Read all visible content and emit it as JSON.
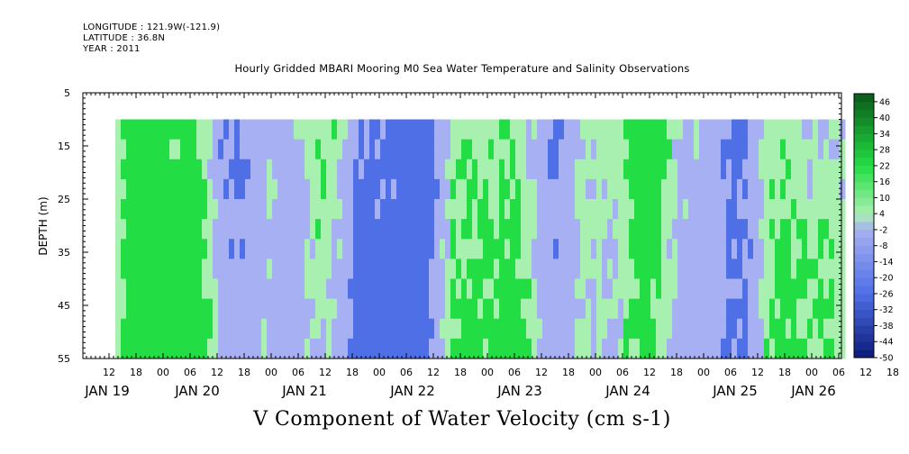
{
  "header": {
    "longitude": "LONGITUDE : 121.9W(-121.9)",
    "latitude": "LATITUDE : 36.8N",
    "year": "YEAR : 2011"
  },
  "chart_data": {
    "type": "heatmap",
    "title": "Hourly Gridded MBARI Mooring M0 Sea Water Temperature and Salinity Observations",
    "xlabel": "V Component of Water Velocity (cm s-1)",
    "ylabel": "DEPTH (m)",
    "y_range": [
      5,
      55
    ],
    "y_reversed": true,
    "y_ticks": [
      5,
      15,
      25,
      35,
      45,
      55
    ],
    "data_depth_range": [
      10,
      55
    ],
    "x_range_hours": [
      "JAN 18 06:00",
      "JAN 26 12:00"
    ],
    "x_hour_ticks": [
      "12",
      "18",
      "00",
      "06",
      "12",
      "18",
      "00",
      "06",
      "12",
      "18",
      "00",
      "06",
      "12",
      "18",
      "00",
      "06",
      "12",
      "18",
      "00",
      "06",
      "12",
      "18",
      "00",
      "06",
      "12",
      "18",
      "00",
      "06",
      "12",
      "18",
      "00",
      "06"
    ],
    "x_day_labels": [
      "JAN 19",
      "JAN 20",
      "JAN 21",
      "JAN 22",
      "JAN 23",
      "JAN 24",
      "JAN 25",
      "JAN 26"
    ],
    "colorbar": {
      "labels": [
        "46",
        "40",
        "34",
        "28",
        "22",
        "16",
        "10",
        "4",
        "-2",
        "-8",
        "-14",
        "-20",
        "-26",
        "-32",
        "-38",
        "-44",
        "-50"
      ],
      "levels": [
        -50,
        -47,
        -44,
        -41,
        -38,
        -35,
        -32,
        -29,
        -26,
        -23,
        -20,
        -17,
        -14,
        -11,
        -8,
        -5,
        -2,
        1,
        4,
        7,
        10,
        13,
        16,
        19,
        22,
        25,
        28,
        31,
        34,
        37,
        40,
        43,
        46,
        49
      ],
      "colors": {
        "deep_negative": "#0a1a78",
        "negative": "#4f6fe6",
        "mild_negative": "#a6b0f2",
        "mild_positive": "#a8f0b0",
        "positive": "#22dd44",
        "deep_positive": "#0a5a1a"
      }
    }
  }
}
